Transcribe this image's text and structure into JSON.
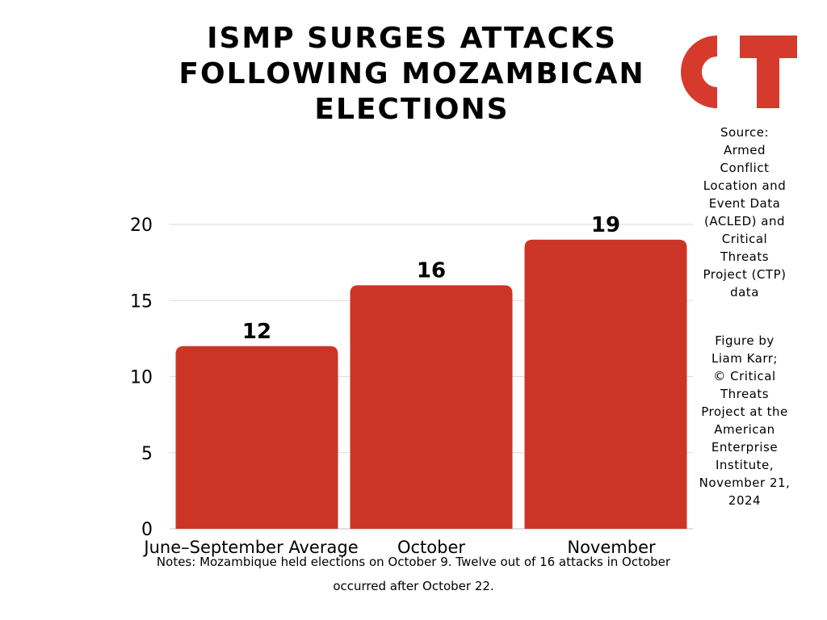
{
  "title_lines": [
    "ISMP SURGES ATTACKS",
    "FOLLOWING MOZAMBICAN",
    "ELECTIONS"
  ],
  "logo_text": "CT",
  "source_lines": [
    "Source:",
    "Armed",
    "Conflict",
    "Location and",
    "Event Data",
    "(ACLED) and",
    "Critical",
    "Threats",
    "Project (CTP)",
    "data"
  ],
  "credit_lines": [
    "Figure by",
    "Liam Karr;",
    "© Critical",
    "Threats",
    "Project at the",
    "American",
    "Enterprise",
    "Institute,",
    "November 21,",
    "2024"
  ],
  "notes": {
    "line1": "Notes: Mozambique held elections on October 9. Twelve out of 16 attacks in October",
    "line2": "occurred after October 22."
  },
  "colors": {
    "bar": "#cc3526",
    "grid": "#d9d9d9",
    "logo": "#d63a2c"
  },
  "chart_data": {
    "type": "bar",
    "title": "ISMP SURGES ATTACKS FOLLOWING MOZAMBICAN ELECTIONS",
    "categories": [
      "June–September Average",
      "October",
      "November"
    ],
    "values": [
      12,
      16,
      19
    ],
    "data_labels": [
      "12",
      "16",
      "19"
    ],
    "xlabel": "",
    "ylabel": "",
    "ylim": [
      0,
      20
    ],
    "yticks": [
      0,
      5,
      10,
      15,
      20
    ],
    "grid": true,
    "legend": "none"
  }
}
